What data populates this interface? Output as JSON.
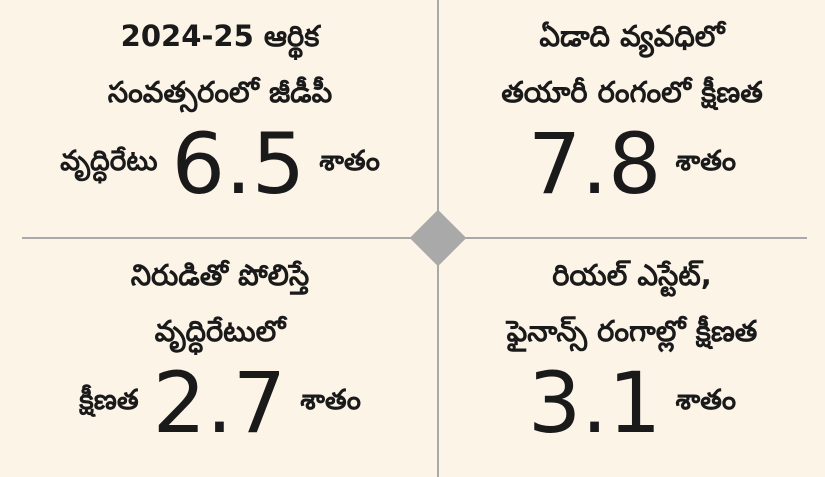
{
  "panels": [
    {
      "lines": [
        "2024-25 ఆర్థిక",
        "సంవత్సరంలో జీడీపీ"
      ],
      "prefix": "వృద్ధిరేటు",
      "number": 6.5,
      "unit": "శాతం"
    },
    {
      "lines": [
        "ఏడాది వ్యవధిలో",
        "తయారీ రంగంలో క్షీణత"
      ],
      "number": 7.8,
      "unit": "శాతం"
    },
    {
      "lines": [
        "నిరుడితో పోలిస్తే",
        "వృద్ధిరేటులో"
      ],
      "prefix": "క్షీణత",
      "number": 2.7,
      "unit": "శాతం"
    },
    {
      "lines": [
        "రియల్ ఎస్టేట్,",
        "ఫైనాన్స్ రంగాల్లో క్షీణత"
      ],
      "number": 3.1,
      "unit": "శాతం"
    }
  ]
}
